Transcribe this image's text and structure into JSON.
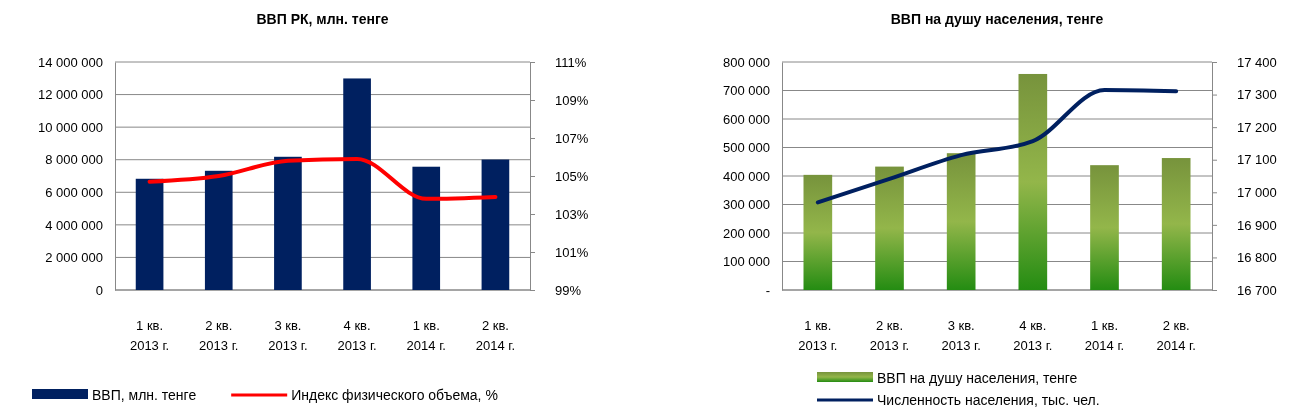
{
  "chart_data": [
    {
      "type": "bar",
      "title": "ВВП РК, млн. тенге",
      "categories": [
        "1 кв. 2013 г.",
        "2 кв. 2013 г.",
        "3 кв. 2013 г.",
        "4 кв. 2013 г.",
        "1 кв. 2014 г.",
        "2 кв. 2014 г."
      ],
      "series": [
        {
          "name": "ВВП, млн. тенге",
          "color": "#002060",
          "values": [
            6830000,
            7320000,
            8180000,
            12990000,
            7570000,
            8010000
          ]
        },
        {
          "name": "Индекс физического объема, %",
          "type": "line",
          "axis": "y2",
          "color": "#ff0000",
          "values": [
            104.7,
            105.0,
            105.8,
            105.9,
            103.8,
            103.9
          ]
        }
      ],
      "ylim": [
        0,
        14000000
      ],
      "yticks": [
        {
          "value": 0,
          "label": "0"
        },
        {
          "value": 2000000,
          "label": "2 000 000"
        },
        {
          "value": 4000000,
          "label": "4 000 000"
        },
        {
          "value": 6000000,
          "label": "6 000 000"
        },
        {
          "value": 8000000,
          "label": "8 000 000"
        },
        {
          "value": 10000000,
          "label": "10 000 000"
        },
        {
          "value": 12000000,
          "label": "12 000 000"
        },
        {
          "value": 14000000,
          "label": "14 000 000"
        }
      ],
      "y2lim": [
        99,
        111
      ],
      "y2ticks": [
        {
          "value": 99,
          "label": "99%"
        },
        {
          "value": 101,
          "label": "101%"
        },
        {
          "value": 103,
          "label": "103%"
        },
        {
          "value": 105,
          "label": "105%"
        },
        {
          "value": 107,
          "label": "107%"
        },
        {
          "value": 109,
          "label": "109%"
        },
        {
          "value": 111,
          "label": "111%"
        }
      ],
      "grid": "y",
      "legend": "bottom",
      "marker": "none",
      "line_style": "solid"
    },
    {
      "type": "bar",
      "title": "ВВП на душу населения, тенге",
      "categories": [
        "1 кв. 2013 г.",
        "2 кв. 2013 г.",
        "3 кв. 2013 г.",
        "4 кв. 2013 г.",
        "1 кв. 2014 г.",
        "2 кв. 2014 г."
      ],
      "series": [
        {
          "name": "ВВП на душу населения, тенге",
          "color": "#77933c",
          "values": [
            404000,
            433000,
            480000,
            758000,
            438000,
            463000
          ]
        },
        {
          "name": "Численность населения, тыс. чел.",
          "type": "line",
          "axis": "y2",
          "color": "#002060",
          "values": [
            16969,
            17041,
            17114,
            17157,
            17314,
            17310
          ]
        }
      ],
      "ylim": [
        0,
        800000
      ],
      "yticks": [
        {
          "value": 0,
          "label": "-"
        },
        {
          "value": 100000,
          "label": "100 000"
        },
        {
          "value": 200000,
          "label": "200 000"
        },
        {
          "value": 300000,
          "label": "300 000"
        },
        {
          "value": 400000,
          "label": "400 000"
        },
        {
          "value": 500000,
          "label": "500 000"
        },
        {
          "value": 600000,
          "label": "600 000"
        },
        {
          "value": 700000,
          "label": "700 000"
        },
        {
          "value": 800000,
          "label": "800 000"
        }
      ],
      "y2lim": [
        16700,
        17400
      ],
      "y2ticks": [
        {
          "value": 16700,
          "label": "16 700"
        },
        {
          "value": 16800,
          "label": "16 800"
        },
        {
          "value": 16900,
          "label": "16 900"
        },
        {
          "value": 17000,
          "label": "17 000"
        },
        {
          "value": 17100,
          "label": "17 100"
        },
        {
          "value": 17200,
          "label": "17 200"
        },
        {
          "value": 17300,
          "label": "17 300"
        },
        {
          "value": 17400,
          "label": "17 400"
        }
      ],
      "grid": "y",
      "legend": "bottom",
      "marker": "none",
      "line_style": "solid"
    }
  ]
}
